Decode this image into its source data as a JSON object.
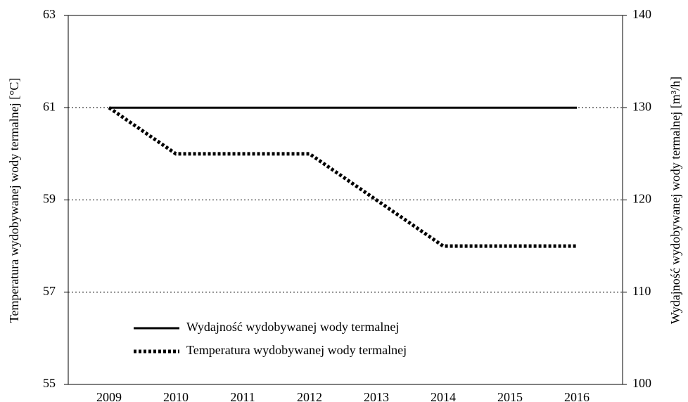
{
  "chart_data": {
    "type": "line",
    "y_label": "Temperatura wydobywanej wody termalnej [°C]",
    "y2_label": "Wydajność wydobywanej wody termalnej [m³/h]",
    "categories": [
      "2009",
      "2010",
      "2011",
      "2012",
      "2013",
      "2014",
      "2015",
      "2016"
    ],
    "series": [
      {
        "name": "Wydajność wydobywanej wody termalnej",
        "color": "#000000",
        "style": "solid",
        "axis": "y2",
        "values": [
          130,
          130,
          130,
          130,
          130,
          130,
          130,
          130
        ]
      },
      {
        "name": "Temperatura wydobywanej wody termalnej",
        "color": "#000000",
        "style": "dotted",
        "axis": "y",
        "values": [
          61,
          60,
          60,
          60,
          59,
          58,
          58,
          58
        ]
      }
    ],
    "ylim": [
      55,
      63
    ],
    "yticks": [
      55,
      57,
      59,
      61,
      63
    ],
    "y2lim": [
      100,
      140
    ],
    "y2ticks": [
      100,
      110,
      120,
      130,
      140
    ],
    "grid": true,
    "legend": "lower left"
  }
}
